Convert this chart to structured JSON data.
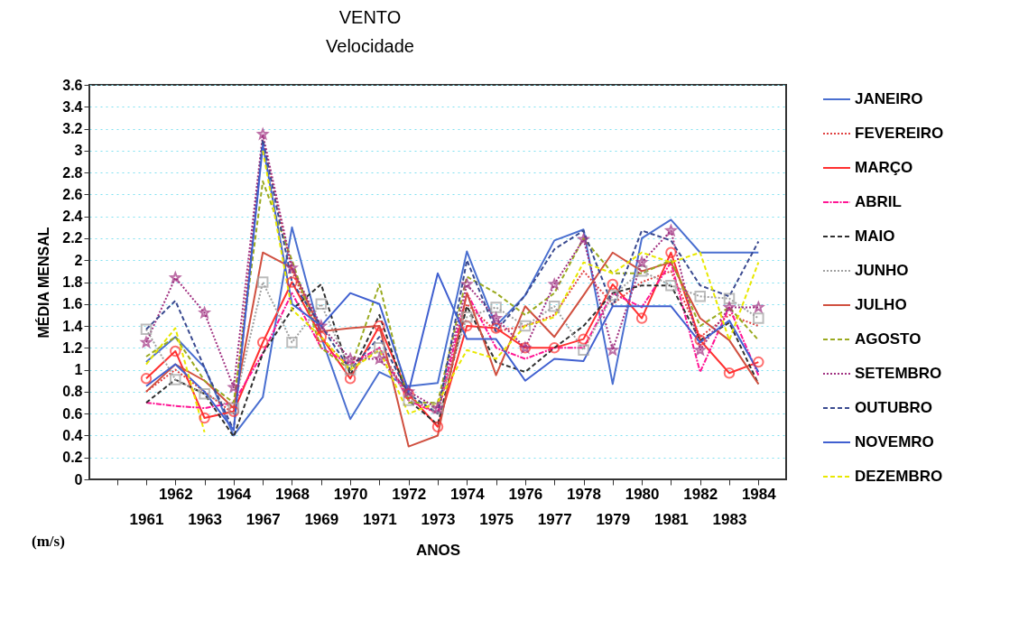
{
  "chart_data": {
    "type": "line",
    "title": "VENTO",
    "subtitle": "Velocidade",
    "xlabel": "ANOS",
    "ylabel": "MÉDIA MENSAL",
    "annotations": [
      "(m/s)"
    ],
    "categories": [
      null,
      "1961",
      "1962",
      "1963",
      "1964",
      "1967",
      "1968",
      "1969",
      "1970",
      "1971",
      "1972",
      "1973",
      "1974",
      "1975",
      "1976",
      "1977",
      "1978",
      "1979",
      "1980",
      "1981",
      "1982",
      "1983",
      "1984"
    ],
    "ylim": [
      0,
      3.6
    ],
    "yticks": [
      0,
      0.2,
      0.4,
      0.6,
      0.8,
      1,
      1.2,
      1.4,
      1.6,
      1.8,
      2,
      2.2,
      2.4,
      2.6,
      2.8,
      3,
      3.2,
      3.4,
      3.6
    ],
    "grid": "y",
    "legend": "right",
    "series": [
      {
        "name": "JANEIRO",
        "color": "#4a6fd0",
        "line_style": "solid",
        "values": [
          null,
          1.07,
          1.3,
          1.02,
          0.4,
          0.75,
          2.3,
          1.3,
          0.55,
          0.98,
          0.85,
          0.88,
          2.08,
          1.4,
          1.68,
          2.18,
          2.28,
          0.87,
          2.2,
          2.37,
          2.07,
          2.07,
          2.07
        ]
      },
      {
        "name": "FEVEREIRO",
        "color": "#e04040",
        "line_style": "dotted",
        "values": [
          null,
          0.8,
          1.0,
          0.8,
          0.6,
          3.1,
          1.9,
          1.3,
          1.0,
          1.2,
          0.75,
          0.6,
          1.6,
          1.35,
          1.4,
          1.5,
          1.9,
          1.6,
          1.8,
          1.9,
          1.3,
          1.5,
          1.4
        ]
      },
      {
        "name": "MARÇO",
        "color": "#ff3030",
        "line_style": "solid",
        "marker": "circle",
        "values": [
          null,
          0.92,
          1.17,
          0.56,
          0.62,
          1.25,
          1.8,
          1.3,
          0.92,
          1.4,
          0.78,
          0.48,
          1.4,
          1.38,
          1.2,
          1.2,
          1.28,
          1.78,
          1.47,
          2.07,
          1.27,
          0.97,
          1.07
        ]
      },
      {
        "name": "ABRIL",
        "color": "#ff1493",
        "line_style": "dashdot",
        "values": [
          null,
          0.7,
          0.67,
          0.65,
          0.7,
          1.15,
          1.7,
          1.2,
          1.05,
          1.2,
          0.72,
          0.6,
          1.7,
          1.2,
          1.1,
          1.2,
          1.2,
          1.7,
          1.57,
          1.98,
          0.98,
          1.57,
          0.95
        ]
      },
      {
        "name": "MAIO",
        "color": "#303030",
        "line_style": "dashed",
        "values": [
          null,
          0.7,
          0.91,
          0.78,
          0.39,
          1.15,
          1.55,
          1.78,
          0.95,
          1.5,
          0.72,
          0.5,
          1.58,
          1.07,
          0.98,
          1.2,
          1.4,
          1.7,
          1.77,
          1.77,
          1.27,
          1.43,
          0.87
        ]
      },
      {
        "name": "JUNHO",
        "color": "#a0a0a0",
        "line_style": "dotted",
        "marker": "square",
        "values": [
          null,
          1.37,
          0.91,
          0.78,
          0.65,
          1.8,
          1.25,
          1.6,
          1.0,
          1.2,
          0.72,
          0.65,
          1.48,
          1.57,
          1.4,
          1.58,
          1.18,
          1.68,
          1.9,
          1.77,
          1.67,
          1.65,
          1.47
        ]
      },
      {
        "name": "JULHO",
        "color": "#d05040",
        "line_style": "solid",
        "values": [
          null,
          0.8,
          1.05,
          0.9,
          0.65,
          2.07,
          1.93,
          1.35,
          1.38,
          1.4,
          0.3,
          0.4,
          1.7,
          0.95,
          1.58,
          1.3,
          1.68,
          2.07,
          1.9,
          1.98,
          1.47,
          1.27,
          0.87
        ]
      },
      {
        "name": "AGOSTO",
        "color": "#9aaa20",
        "line_style": "dashed",
        "values": [
          null,
          1.12,
          1.3,
          0.9,
          0.7,
          2.72,
          2.0,
          1.2,
          1.0,
          1.78,
          0.7,
          0.7,
          1.85,
          1.7,
          1.5,
          1.7,
          2.2,
          1.88,
          1.88,
          2.0,
          1.4,
          1.57,
          1.27
        ]
      },
      {
        "name": "SETEMBRO",
        "color": "#a03080",
        "line_style": "dotted",
        "marker": "star",
        "values": [
          null,
          1.25,
          1.84,
          1.52,
          0.84,
          3.15,
          1.93,
          1.4,
          1.1,
          1.1,
          0.8,
          0.65,
          1.78,
          1.47,
          1.2,
          1.78,
          2.19,
          1.18,
          1.98,
          2.27,
          1.18,
          1.57,
          1.57
        ]
      },
      {
        "name": "OUTUBRO",
        "color": "#3a4a90",
        "line_style": "dashed",
        "values": [
          null,
          1.37,
          1.63,
          1.02,
          0.45,
          3.1,
          1.8,
          1.4,
          1.0,
          1.3,
          0.78,
          0.6,
          2.0,
          1.35,
          1.68,
          2.1,
          2.27,
          1.58,
          2.27,
          2.18,
          1.77,
          1.67,
          2.17
        ]
      },
      {
        "name": "NOVEMRO",
        "color": "#4060d0",
        "line_style": "solid",
        "values": [
          null,
          0.85,
          1.05,
          0.8,
          0.45,
          3.05,
          1.6,
          1.4,
          1.7,
          1.6,
          0.8,
          1.88,
          1.28,
          1.28,
          0.9,
          1.1,
          1.08,
          1.58,
          1.58,
          1.58,
          1.25,
          1.45,
          0.98
        ]
      },
      {
        "name": "DEZEMBRO",
        "color": "#e8e800",
        "line_style": "dashed",
        "values": [
          null,
          1.05,
          1.38,
          0.43,
          null,
          3.0,
          1.55,
          1.3,
          1.0,
          1.18,
          0.6,
          0.7,
          1.18,
          1.1,
          1.4,
          1.48,
          1.98,
          1.88,
          2.07,
          1.98,
          2.07,
          1.27,
          1.98
        ]
      }
    ]
  }
}
